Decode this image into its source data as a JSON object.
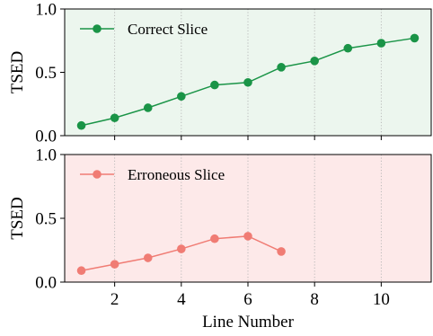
{
  "chart_data": [
    {
      "type": "line",
      "ylabel": "TSED",
      "ylim": [
        0.0,
        1.0
      ],
      "xlim": [
        0.5,
        11.5
      ],
      "yticks": [
        "0.0",
        "0.5",
        "1.0"
      ],
      "background": "#ecf6ee",
      "color": "#1a9447",
      "legend_position": "top-left",
      "vertical_gridlines_at": [
        2,
        4,
        6,
        8,
        10
      ],
      "series": [
        {
          "name": "Correct Slice",
          "x": [
            1,
            2,
            3,
            4,
            5,
            6,
            7,
            8,
            9,
            10,
            11
          ],
          "values": [
            0.08,
            0.14,
            0.22,
            0.31,
            0.4,
            0.42,
            0.54,
            0.59,
            0.69,
            0.73,
            0.77
          ]
        }
      ]
    },
    {
      "type": "line",
      "ylabel": "TSED",
      "xlabel": "Line Number",
      "ylim": [
        0.0,
        1.0
      ],
      "xlim": [
        0.5,
        11.5
      ],
      "yticks": [
        "0.0",
        "0.5",
        "1.0"
      ],
      "xticks": [
        "2",
        "4",
        "6",
        "8",
        "10"
      ],
      "background": "#fde9e9",
      "color": "#f07c74",
      "legend_position": "top-left",
      "vertical_gridlines_at": [
        2,
        4,
        6,
        8,
        10
      ],
      "series": [
        {
          "name": "Erroneous Slice",
          "x": [
            1,
            2,
            3,
            4,
            5,
            6,
            7
          ],
          "values": [
            0.09,
            0.14,
            0.19,
            0.26,
            0.34,
            0.36,
            0.24
          ]
        }
      ]
    }
  ]
}
